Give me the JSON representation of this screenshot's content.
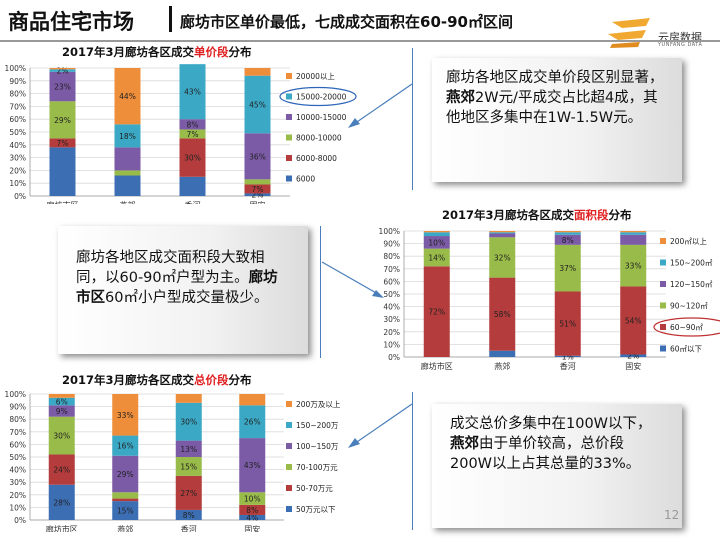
{
  "header": {
    "title": "商品住宅市场",
    "subtitle": "廊坊市区单价最低，七成成交面积在60-90㎡区间",
    "logo_text": "云房数据",
    "logo_sub": "YUNFANG DATA"
  },
  "callouts": {
    "price": {
      "parts": [
        "廊坊各地区成交单价段区别显著，",
        "燕郊",
        "2W元/平成交占比超4成，其他地区多集中在1W-1.5W元。"
      ]
    },
    "area": {
      "parts": [
        "廊坊各地区成交面积段大致相同，以60-90㎡户型为主。",
        "廊坊市区",
        "60㎡小户型成交量极少。"
      ]
    },
    "total": {
      "parts": [
        "成交总价多集中在100W以下，",
        "燕郊",
        "由于单价较高，总价段200W以上占其总量的33%。"
      ]
    }
  },
  "page_number": "12",
  "colors": {
    "blue": "#3c6eb4",
    "red": "#b43c3c",
    "green": "#98bb4a",
    "purple": "#7b5aa6",
    "teal": "#3ba9c6",
    "orange": "#ee8e3a",
    "highlight": "#2d66b8",
    "ellipse": "#c03030"
  },
  "chart_data": [
    {
      "type": "bar",
      "stacked": true,
      "title_parts": [
        "2017年",
        "3",
        "月廊坊各区成交",
        "单价段",
        "分布"
      ],
      "categories": [
        "廊坊市区",
        "燕郊",
        "香河",
        "固安"
      ],
      "yticks": [
        "0%",
        "10%",
        "20%",
        "30%",
        "40%",
        "50%",
        "60%",
        "70%",
        "80%",
        "90%",
        "100%"
      ],
      "ylim": [
        0,
        100
      ],
      "series": [
        {
          "name": "6000",
          "color": "#3c6eb4",
          "values": [
            38,
            16,
            15,
            2
          ],
          "labels": [
            "",
            "",
            "",
            "2%"
          ]
        },
        {
          "name": "6000-8000",
          "color": "#b43c3c",
          "values": [
            7,
            0,
            30,
            7
          ],
          "labels": [
            "7%",
            "",
            "30%",
            "7%"
          ]
        },
        {
          "name": "8000-10000",
          "color": "#98bb4a",
          "values": [
            29,
            4,
            7,
            4
          ],
          "labels": [
            "29%",
            "",
            "7%",
            ""
          ]
        },
        {
          "name": "10000-15000",
          "color": "#7b5aa6",
          "values": [
            23,
            18,
            8,
            36
          ],
          "labels": [
            "23%",
            "",
            "8%",
            "36%"
          ]
        },
        {
          "name": "15000-20000",
          "color": "#3ba9c6",
          "values": [
            2,
            18,
            43,
            45
          ],
          "labels": [
            "2%",
            "18%",
            "43%",
            "45%"
          ]
        },
        {
          "name": "20000以上",
          "color": "#ee8e3a",
          "values": [
            1,
            44,
            0,
            6
          ],
          "labels": [
            "",
            "44%",
            "",
            ""
          ]
        }
      ],
      "highlight_legend": "15000-20000"
    },
    {
      "type": "bar",
      "stacked": true,
      "title_parts": [
        "2017年",
        "3",
        "月廊坊各区成交",
        "面积段",
        "分布"
      ],
      "categories": [
        "廊坊市区",
        "燕郊",
        "香河",
        "固安"
      ],
      "yticks": [
        "0%",
        "10%",
        "20%",
        "30%",
        "40%",
        "50%",
        "60%",
        "70%",
        "80%",
        "90%",
        "100%"
      ],
      "ylim": [
        0,
        100
      ],
      "series": [
        {
          "name": "60㎡以下",
          "color": "#3c6eb4",
          "values": [
            0,
            5,
            1,
            2
          ],
          "labels": [
            "",
            "",
            "1%",
            "2%"
          ]
        },
        {
          "name": "60~90㎡",
          "color": "#b43c3c",
          "values": [
            72,
            58,
            51,
            54
          ],
          "labels": [
            "72%",
            "58%",
            "51%",
            "54%"
          ]
        },
        {
          "name": "90~120㎡",
          "color": "#98bb4a",
          "values": [
            14,
            32,
            37,
            33
          ],
          "labels": [
            "14%",
            "32%",
            "37%",
            "33%"
          ]
        },
        {
          "name": "120~150㎡",
          "color": "#7b5aa6",
          "values": [
            10,
            3,
            8,
            8
          ],
          "labels": [
            "10%",
            "",
            "8%",
            ""
          ]
        },
        {
          "name": "150~200㎡",
          "color": "#3ba9c6",
          "values": [
            3,
            1,
            2,
            2
          ],
          "labels": [
            "",
            "",
            "",
            ""
          ]
        },
        {
          "name": "200㎡以上",
          "color": "#ee8e3a",
          "values": [
            1,
            1,
            1,
            1
          ],
          "labels": [
            "",
            "",
            "",
            ""
          ]
        }
      ],
      "highlight_legend": "60~90㎡"
    },
    {
      "type": "bar",
      "stacked": true,
      "title_parts": [
        "2017年",
        "3",
        "月廊坊各区成交",
        "总价段",
        "分布"
      ],
      "categories": [
        "廊坊市区",
        "燕郊",
        "香河",
        "固安"
      ],
      "yticks": [
        "0%",
        "10%",
        "20%",
        "30%",
        "40%",
        "50%",
        "60%",
        "70%",
        "80%",
        "90%",
        "100%"
      ],
      "ylim": [
        0,
        100
      ],
      "series": [
        {
          "name": "50万元以下",
          "color": "#3c6eb4",
          "values": [
            28,
            15,
            8,
            4
          ],
          "labels": [
            "28%",
            "15%",
            "8%",
            "4%"
          ]
        },
        {
          "name": "50-70万元",
          "color": "#b43c3c",
          "values": [
            24,
            2,
            27,
            8
          ],
          "labels": [
            "24%",
            "",
            "27%",
            "8%"
          ]
        },
        {
          "name": "70-100万元",
          "color": "#98bb4a",
          "values": [
            30,
            5,
            15,
            10
          ],
          "labels": [
            "30%",
            "",
            "15%",
            "10%"
          ]
        },
        {
          "name": "100~150万",
          "color": "#7b5aa6",
          "values": [
            9,
            29,
            13,
            43
          ],
          "labels": [
            "9%",
            "29%",
            "13%",
            "43%"
          ]
        },
        {
          "name": "150~200万",
          "color": "#3ba9c6",
          "values": [
            6,
            16,
            30,
            26
          ],
          "labels": [
            "6%",
            "16%",
            "30%",
            "26%"
          ]
        },
        {
          "name": "200万及以上",
          "color": "#ee8e3a",
          "values": [
            3,
            33,
            7,
            9
          ],
          "labels": [
            "",
            "33%",
            "",
            ""
          ]
        }
      ],
      "highlight_legend": ""
    }
  ]
}
